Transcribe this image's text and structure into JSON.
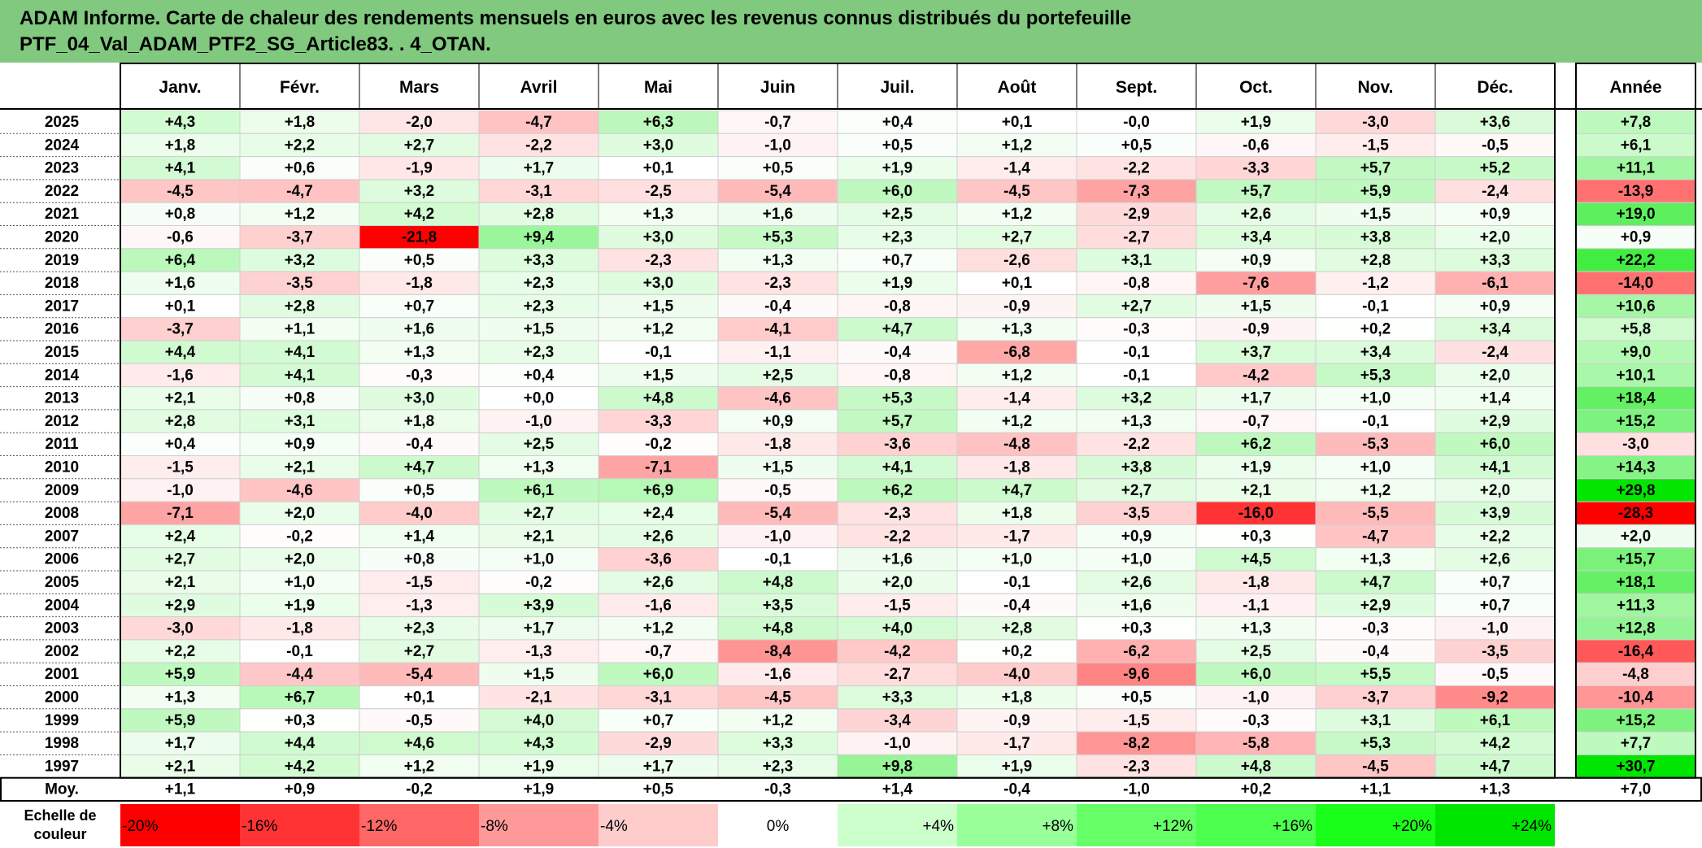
{
  "title": {
    "line1": "ADAM Informe. Carte de chaleur des rendements mensuels en euros avec les revenus connus distribués du portefeuille",
    "line2": "PTF_04_Val_ADAM_PTF2_SG_Article83. . 4_OTAN."
  },
  "chart_data": {
    "type": "heatmap",
    "months": [
      "Janv.",
      "Févr.",
      "Mars",
      "Avril",
      "Mai",
      "Juin",
      "Juil.",
      "Août",
      "Sept.",
      "Oct.",
      "Nov.",
      "Déc."
    ],
    "year_label": "Année",
    "rows": [
      {
        "year": "2025",
        "values": [
          "+4,3",
          "+1,8",
          "-2,0",
          "-4,7",
          "+6,3",
          "-0,7",
          "+0,4",
          "+0,1",
          "-0,0",
          "+1,9",
          "-3,0",
          "+3,6"
        ],
        "annual": "+7,8"
      },
      {
        "year": "2024",
        "values": [
          "+1,8",
          "+2,2",
          "+2,7",
          "-2,2",
          "+3,0",
          "-1,0",
          "+0,5",
          "+1,2",
          "+0,5",
          "-0,6",
          "-1,5",
          "-0,5"
        ],
        "annual": "+6,1"
      },
      {
        "year": "2023",
        "values": [
          "+4,1",
          "+0,6",
          "-1,9",
          "+1,7",
          "+0,1",
          "+0,5",
          "+1,9",
          "-1,4",
          "-2,2",
          "-3,3",
          "+5,7",
          "+5,2"
        ],
        "annual": "+11,1"
      },
      {
        "year": "2022",
        "values": [
          "-4,5",
          "-4,7",
          "+3,2",
          "-3,1",
          "-2,5",
          "-5,4",
          "+6,0",
          "-4,5",
          "-7,3",
          "+5,7",
          "+5,9",
          "-2,4"
        ],
        "annual": "-13,9"
      },
      {
        "year": "2021",
        "values": [
          "+0,8",
          "+1,2",
          "+4,2",
          "+2,8",
          "+1,3",
          "+1,6",
          "+2,5",
          "+1,2",
          "-2,9",
          "+2,6",
          "+1,5",
          "+0,9"
        ],
        "annual": "+19,0"
      },
      {
        "year": "2020",
        "values": [
          "-0,6",
          "-3,7",
          "-21,8",
          "+9,4",
          "+3,0",
          "+5,3",
          "+2,3",
          "+2,7",
          "-2,7",
          "+3,4",
          "+3,8",
          "+2,0"
        ],
        "annual": "+0,9"
      },
      {
        "year": "2019",
        "values": [
          "+6,4",
          "+3,2",
          "+0,5",
          "+3,3",
          "-2,3",
          "+1,3",
          "+0,7",
          "-2,6",
          "+3,1",
          "+0,9",
          "+2,8",
          "+3,3"
        ],
        "annual": "+22,2"
      },
      {
        "year": "2018",
        "values": [
          "+1,6",
          "-3,5",
          "-1,8",
          "+2,3",
          "+3,0",
          "-2,3",
          "+1,9",
          "+0,1",
          "-0,8",
          "-7,6",
          "-1,2",
          "-6,1"
        ],
        "annual": "-14,0"
      },
      {
        "year": "2017",
        "values": [
          "+0,1",
          "+2,8",
          "+0,7",
          "+2,3",
          "+1,5",
          "-0,4",
          "-0,8",
          "-0,9",
          "+2,7",
          "+1,5",
          "-0,1",
          "+0,9"
        ],
        "annual": "+10,6"
      },
      {
        "year": "2016",
        "values": [
          "-3,7",
          "+1,1",
          "+1,6",
          "+1,5",
          "+1,2",
          "-4,1",
          "+4,7",
          "+1,3",
          "-0,3",
          "-0,9",
          "+0,2",
          "+3,4"
        ],
        "annual": "+5,8"
      },
      {
        "year": "2015",
        "values": [
          "+4,4",
          "+4,1",
          "+1,3",
          "+2,3",
          "-0,1",
          "-1,1",
          "-0,4",
          "-6,8",
          "-0,1",
          "+3,7",
          "+3,4",
          "-2,4"
        ],
        "annual": "+9,0"
      },
      {
        "year": "2014",
        "values": [
          "-1,6",
          "+4,1",
          "-0,3",
          "+0,4",
          "+1,5",
          "+2,5",
          "-0,8",
          "+1,2",
          "-0,1",
          "-4,2",
          "+5,3",
          "+2,0"
        ],
        "annual": "+10,1"
      },
      {
        "year": "2013",
        "values": [
          "+2,1",
          "+0,8",
          "+3,0",
          "+0,0",
          "+4,8",
          "-4,6",
          "+5,3",
          "-1,4",
          "+3,2",
          "+1,7",
          "+1,0",
          "+1,4"
        ],
        "annual": "+18,4"
      },
      {
        "year": "2012",
        "values": [
          "+2,8",
          "+3,1",
          "+1,8",
          "-1,0",
          "-3,3",
          "+0,9",
          "+5,7",
          "+1,2",
          "+1,3",
          "-0,7",
          "-0,1",
          "+2,9"
        ],
        "annual": "+15,2"
      },
      {
        "year": "2011",
        "values": [
          "+0,4",
          "+0,9",
          "-0,4",
          "+2,5",
          "-0,2",
          "-1,8",
          "-3,6",
          "-4,8",
          "-2,2",
          "+6,2",
          "-5,3",
          "+6,0"
        ],
        "annual": "-3,0"
      },
      {
        "year": "2010",
        "values": [
          "-1,5",
          "+2,1",
          "+4,7",
          "+1,3",
          "-7,1",
          "+1,5",
          "+4,1",
          "-1,8",
          "+3,8",
          "+1,9",
          "+1,0",
          "+4,1"
        ],
        "annual": "+14,3"
      },
      {
        "year": "2009",
        "values": [
          "-1,0",
          "-4,6",
          "+0,5",
          "+6,1",
          "+6,9",
          "-0,5",
          "+6,2",
          "+4,7",
          "+2,7",
          "+2,1",
          "+1,2",
          "+2,0"
        ],
        "annual": "+29,8"
      },
      {
        "year": "2008",
        "values": [
          "-7,1",
          "+2,0",
          "-4,0",
          "+2,7",
          "+2,4",
          "-5,4",
          "-2,3",
          "+1,8",
          "-3,5",
          "-16,0",
          "-5,5",
          "+3,9"
        ],
        "annual": "-28,3"
      },
      {
        "year": "2007",
        "values": [
          "+2,4",
          "-0,2",
          "+1,4",
          "+2,1",
          "+2,6",
          "-1,0",
          "-2,2",
          "-1,7",
          "+0,9",
          "+0,3",
          "-4,7",
          "+2,2"
        ],
        "annual": "+2,0"
      },
      {
        "year": "2006",
        "values": [
          "+2,7",
          "+2,0",
          "+0,8",
          "+1,0",
          "-3,6",
          "-0,1",
          "+1,6",
          "+1,0",
          "+1,0",
          "+4,5",
          "+1,3",
          "+2,6"
        ],
        "annual": "+15,7"
      },
      {
        "year": "2005",
        "values": [
          "+2,1",
          "+1,0",
          "-1,5",
          "-0,2",
          "+2,6",
          "+4,8",
          "+2,0",
          "-0,1",
          "+2,6",
          "-1,8",
          "+4,7",
          "+0,7"
        ],
        "annual": "+18,1"
      },
      {
        "year": "2004",
        "values": [
          "+2,9",
          "+1,9",
          "-1,3",
          "+3,9",
          "-1,6",
          "+3,5",
          "-1,5",
          "-0,4",
          "+1,6",
          "-1,1",
          "+2,9",
          "+0,7"
        ],
        "annual": "+11,3"
      },
      {
        "year": "2003",
        "values": [
          "-3,0",
          "-1,8",
          "+2,3",
          "+1,7",
          "+1,2",
          "+4,8",
          "+4,0",
          "+2,8",
          "+0,3",
          "+1,3",
          "-0,3",
          "-1,0"
        ],
        "annual": "+12,8"
      },
      {
        "year": "2002",
        "values": [
          "+2,2",
          "-0,1",
          "+2,7",
          "-1,3",
          "-0,7",
          "-8,4",
          "-4,2",
          "+0,2",
          "-6,2",
          "+2,5",
          "-0,4",
          "-3,5"
        ],
        "annual": "-16,4"
      },
      {
        "year": "2001",
        "values": [
          "+5,9",
          "-4,4",
          "-5,4",
          "+1,5",
          "+6,0",
          "-1,6",
          "-2,7",
          "-4,0",
          "-9,6",
          "+6,0",
          "+5,5",
          "-0,5"
        ],
        "annual": "-4,8"
      },
      {
        "year": "2000",
        "values": [
          "+1,3",
          "+6,7",
          "+0,1",
          "-2,1",
          "-3,1",
          "-4,5",
          "+3,3",
          "+1,8",
          "+0,5",
          "-1,0",
          "-3,7",
          "-9,2"
        ],
        "annual": "-10,4"
      },
      {
        "year": "1999",
        "values": [
          "+5,9",
          "+0,3",
          "-0,5",
          "+4,0",
          "+0,7",
          "+1,2",
          "-3,4",
          "-0,9",
          "-1,5",
          "-0,3",
          "+3,1",
          "+6,1"
        ],
        "annual": "+15,2"
      },
      {
        "year": "1998",
        "values": [
          "+1,7",
          "+4,4",
          "+4,6",
          "+4,3",
          "-2,9",
          "+3,3",
          "-1,0",
          "-1,7",
          "-8,2",
          "-5,8",
          "+5,3",
          "+4,2"
        ],
        "annual": "+7,7"
      },
      {
        "year": "1997",
        "values": [
          "+2,1",
          "+4,2",
          "+1,2",
          "+1,9",
          "+1,7",
          "+2,3",
          "+9,8",
          "+1,9",
          "-2,3",
          "+4,8",
          "-4,5",
          "+4,7"
        ],
        "annual": "+30,7"
      }
    ],
    "average": {
      "label": "Moy.",
      "values": [
        "+1,1",
        "+0,9",
        "-0,2",
        "+1,9",
        "+0,5",
        "-0,3",
        "+1,4",
        "-0,4",
        "-1,0",
        "+0,2",
        "+1,1",
        "+1,3"
      ],
      "annual": "+7,0"
    },
    "scale": {
      "label_line1": "Echelle de",
      "label_line2": "couleur",
      "steps": [
        {
          "label": "-20%",
          "value": -20,
          "color": "#ff0000"
        },
        {
          "label": "-16%",
          "value": -16,
          "color": "#ff3333"
        },
        {
          "label": "-12%",
          "value": -12,
          "color": "#ff6666"
        },
        {
          "label": "-8%",
          "value": -8,
          "color": "#ff9999"
        },
        {
          "label": "-4%",
          "value": -4,
          "color": "#ffcccc"
        },
        {
          "label": "0%",
          "value": 0,
          "color": "#ffffff"
        },
        {
          "label": "+4%",
          "value": 4,
          "color": "#ccffcc"
        },
        {
          "label": "+8%",
          "value": 8,
          "color": "#99ff99"
        },
        {
          "label": "+12%",
          "value": 12,
          "color": "#66ff66"
        },
        {
          "label": "+16%",
          "value": 16,
          "color": "#4dff4d"
        },
        {
          "label": "+20%",
          "value": 20,
          "color": "#1aff1a"
        },
        {
          "label": "+24%",
          "value": 24,
          "color": "#00e600"
        }
      ]
    }
  }
}
